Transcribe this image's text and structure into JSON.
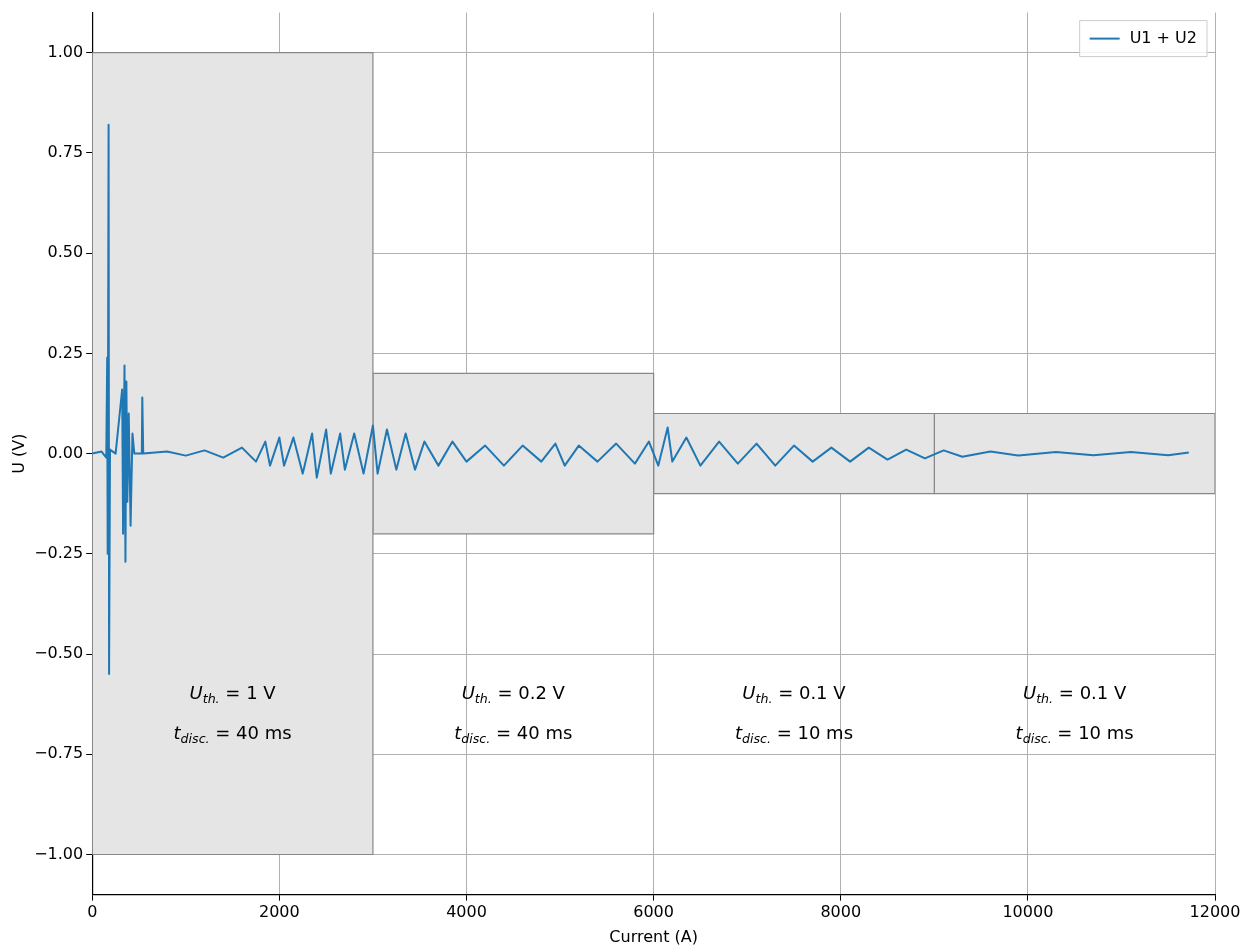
{
  "chart_data": {
    "type": "line",
    "xlabel": "Current (A)",
    "ylabel": "U (V)",
    "xlim": [
      0,
      12000
    ],
    "xticks": [
      0,
      2000,
      4000,
      6000,
      8000,
      10000,
      12000
    ],
    "ylim": [
      -1.1,
      1.1
    ],
    "yticks": [
      {
        "value": -1,
        "label": "−1.00"
      },
      {
        "value": -0.75,
        "label": "−0.75"
      },
      {
        "value": -0.5,
        "label": "−0.50"
      },
      {
        "value": -0.25,
        "label": "−0.25"
      },
      {
        "value": 0,
        "label": "0.00"
      },
      {
        "value": 0.25,
        "label": "0.25"
      },
      {
        "value": 0.5,
        "label": "0.50"
      },
      {
        "value": 0.75,
        "label": "0.75"
      },
      {
        "value": 1,
        "label": "1.00"
      }
    ],
    "grid": true,
    "legend": "top right",
    "series": [
      {
        "type": "area",
        "color": "#e5e5e5",
        "x": [
          0,
          0,
          3000,
          3000,
          0
        ],
        "values": [
          -1,
          1,
          1,
          -1,
          -1
        ]
      },
      {
        "type": "area",
        "color": "#e5e5e5",
        "x": [
          3000,
          3000,
          6000,
          6000,
          3000
        ],
        "values": [
          -0.2,
          0.2,
          0.2,
          -0.2,
          -0.2
        ]
      },
      {
        "type": "area",
        "color": "#e5e5e5",
        "x": [
          6000,
          6000,
          9000,
          9000,
          6000
        ],
        "values": [
          -0.1,
          0.1,
          0.1,
          -0.1,
          -0.1
        ]
      },
      {
        "type": "area",
        "color": "#e5e5e5",
        "x": [
          9000,
          9000,
          12000,
          12000,
          9000
        ],
        "values": [
          -0.1,
          0.1,
          0.1,
          -0.1,
          -0.1
        ]
      },
      {
        "type": "line",
        "name": "U1 + U2",
        "color": "#1f77b4",
        "x": [
          0,
          100,
          150,
          160,
          165,
          175,
          180,
          190,
          250,
          320,
          330,
          345,
          355,
          365,
          375,
          390,
          410,
          430,
          450,
          530,
          535,
          545,
          800,
          1000,
          1200,
          1400,
          1600,
          1750,
          1850,
          1900,
          2000,
          2050,
          2150,
          2250,
          2350,
          2400,
          2500,
          2550,
          2650,
          2700,
          2800,
          2900,
          3000,
          3050,
          3150,
          3250,
          3350,
          3450,
          3550,
          3700,
          3850,
          4000,
          4200,
          4400,
          4600,
          4800,
          4950,
          5050,
          5200,
          5400,
          5600,
          5800,
          5950,
          6050,
          6150,
          6200,
          6350,
          6500,
          6700,
          6900,
          7100,
          7300,
          7500,
          7700,
          7900,
          8100,
          8300,
          8500,
          8700,
          8900,
          9100,
          9300,
          9600,
          9900,
          10300,
          10700,
          11100,
          11500,
          11720
        ],
        "values": [
          0,
          0.005,
          -0.01,
          0.24,
          -0.25,
          0.82,
          -0.55,
          0.01,
          0,
          0.16,
          -0.2,
          0.22,
          -0.27,
          0.18,
          -0.12,
          0.1,
          -0.18,
          0.05,
          0,
          0,
          0.14,
          0,
          0.005,
          -0.005,
          0.008,
          -0.01,
          0.015,
          -0.02,
          0.03,
          -0.03,
          0.04,
          -0.03,
          0.04,
          -0.05,
          0.05,
          -0.06,
          0.06,
          -0.05,
          0.05,
          -0.04,
          0.05,
          -0.05,
          0.07,
          -0.05,
          0.06,
          -0.04,
          0.05,
          -0.04,
          0.03,
          -0.03,
          0.03,
          -0.02,
          0.02,
          -0.03,
          0.02,
          -0.02,
          0.025,
          -0.03,
          0.02,
          -0.02,
          0.025,
          -0.025,
          0.03,
          -0.03,
          0.065,
          -0.02,
          0.04,
          -0.03,
          0.03,
          -0.025,
          0.025,
          -0.03,
          0.02,
          -0.02,
          0.015,
          -0.02,
          0.015,
          -0.015,
          0.01,
          -0.012,
          0.008,
          -0.008,
          0.005,
          -0.005,
          0.004,
          -0.004,
          0.004,
          -0.004,
          0.003
        ]
      }
    ],
    "annotations": [
      "U$_{th.}$ = 1 V",
      "t$_{disc.}$ = 40 ms",
      "U$_{th.}$ = 0.2 V",
      "t$_{disc.}$ = 40 ms",
      "U$_{th.}$ = 0.1 V",
      "t$_{disc.}$ = 10 ms",
      "U$_{th.}$ = 0.1 V",
      "t$_{disc.}$ = 10 ms"
    ]
  }
}
